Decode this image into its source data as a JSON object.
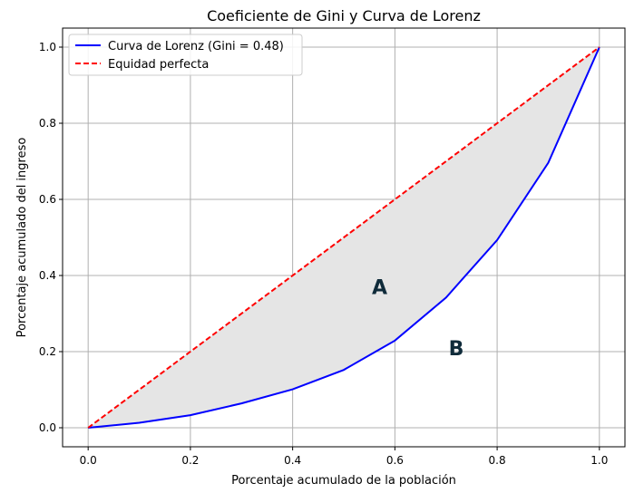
{
  "chart_data": {
    "type": "line",
    "title": "Coeficiente de Gini y Curva de Lorenz",
    "xlabel": "Porcentaje acumulado de la población",
    "ylabel": "Porcentaje acumulado del ingreso",
    "xlim": [
      -0.05,
      1.05
    ],
    "ylim": [
      -0.05,
      1.05
    ],
    "grid": true,
    "xticks": [
      "0.0",
      "0.2",
      "0.4",
      "0.6",
      "0.8",
      "1.0"
    ],
    "yticks": [
      "0.0",
      "0.2",
      "0.4",
      "0.6",
      "0.8",
      "1.0"
    ],
    "legend_position": "upper-left",
    "series": [
      {
        "name": "Curva de Lorenz (Gini = 0.48)",
        "color": "#0000ff",
        "style": "solid",
        "x": [
          0.0,
          0.1,
          0.2,
          0.3,
          0.4,
          0.5,
          0.6,
          0.7,
          0.8,
          0.9,
          1.0
        ],
        "y": [
          0.0,
          0.013,
          0.033,
          0.064,
          0.101,
          0.152,
          0.229,
          0.342,
          0.493,
          0.696,
          1.0
        ]
      },
      {
        "name": "Equidad perfecta",
        "color": "#ff0000",
        "style": "dashed",
        "x": [
          0.0,
          1.0
        ],
        "y": [
          0.0,
          1.0
        ]
      }
    ],
    "fill_between": {
      "color": "#e5e5e5",
      "between": [
        "Equidad perfecta",
        "Curva de Lorenz (Gini = 0.48)"
      ]
    },
    "annotations": [
      {
        "text": "A",
        "x": 0.57,
        "y": 0.37
      },
      {
        "text": "B",
        "x": 0.72,
        "y": 0.21
      }
    ]
  }
}
